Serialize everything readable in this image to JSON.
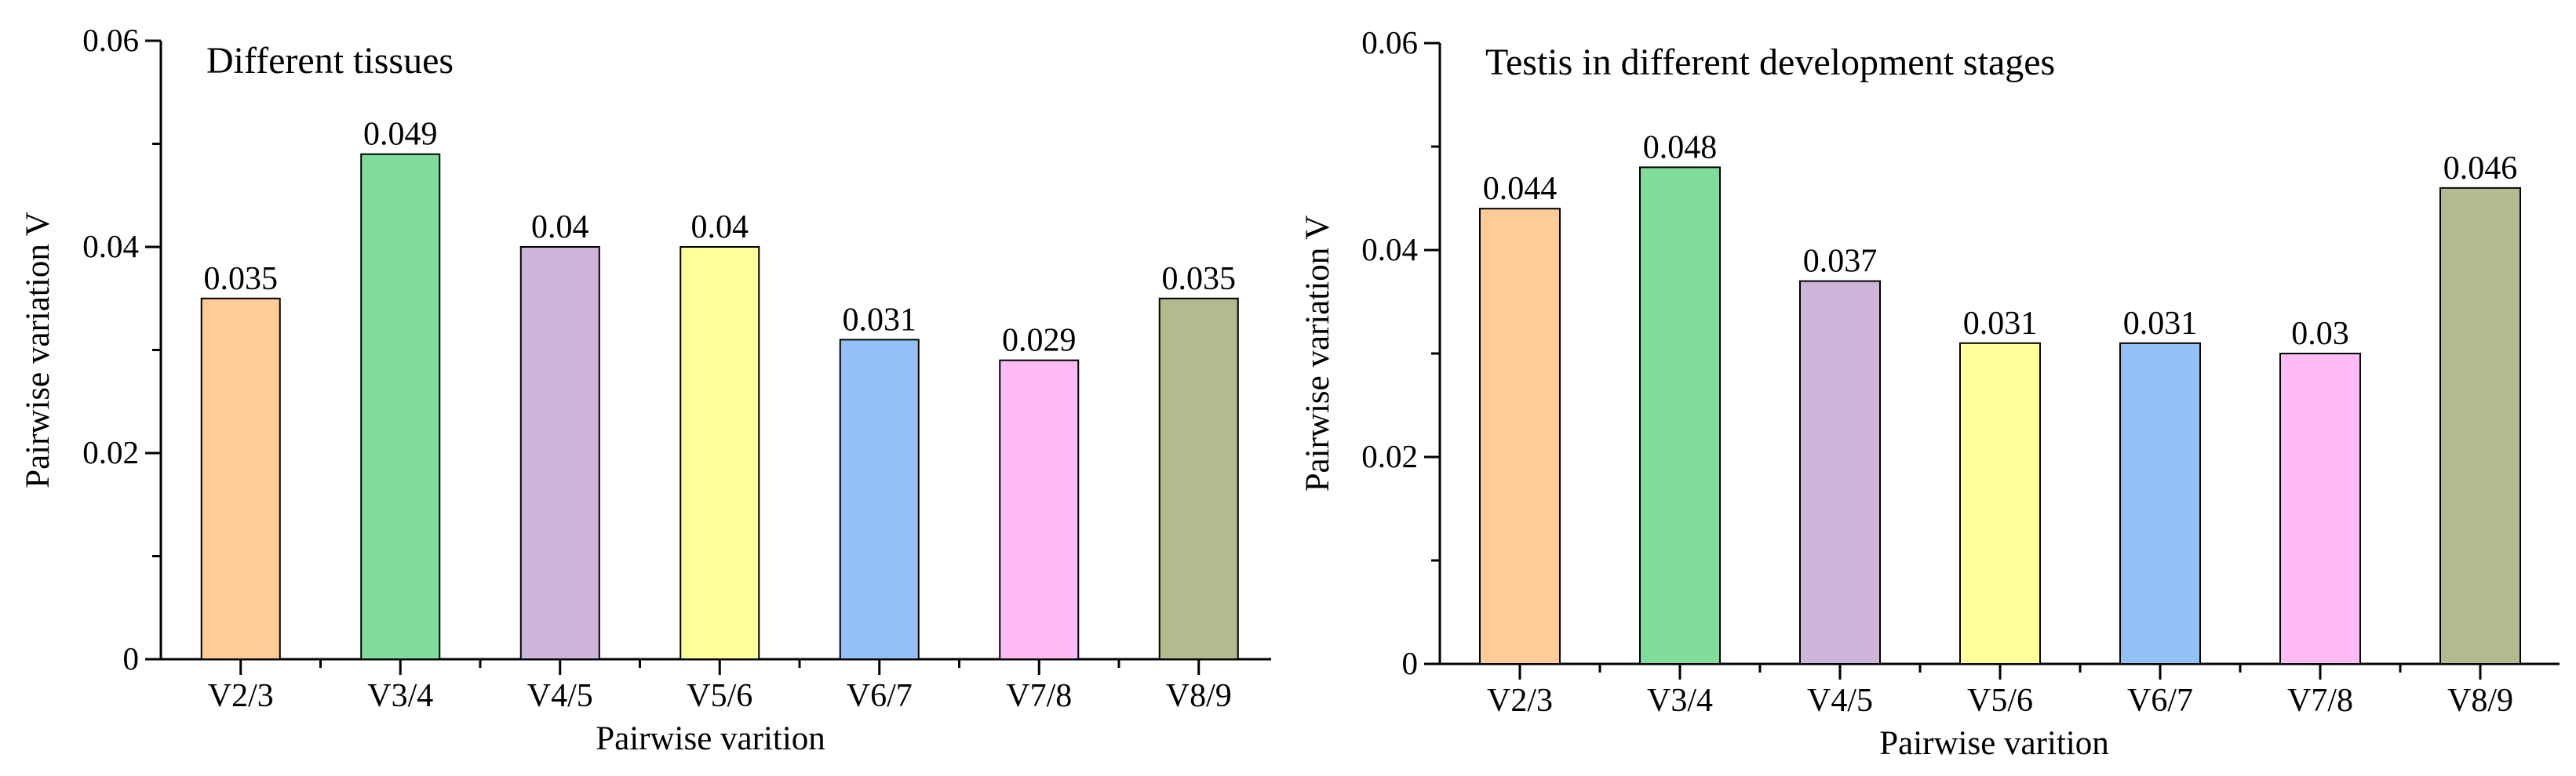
{
  "chart_data": [
    {
      "type": "bar",
      "title": "Different tissues",
      "xlabel": "Pairwise varition",
      "ylabel": "Pairwise variation V",
      "ylim": [
        0,
        0.06
      ],
      "yticks": [
        0,
        0.02,
        0.04,
        0.06
      ],
      "ytick_labels": [
        "0",
        "0.02",
        "0.04",
        "0.06"
      ],
      "grid": false,
      "categories": [
        "V2/3",
        "V3/4",
        "V4/5",
        "V5/6",
        "V6/7",
        "V7/8",
        "V8/9"
      ],
      "values": [
        0.035,
        0.049,
        0.04,
        0.04,
        0.031,
        0.029,
        0.035
      ],
      "data_labels": [
        "0.035",
        "0.049",
        "0.04",
        "0.04",
        "0.031",
        "0.029",
        "0.035"
      ],
      "colors": [
        "#FFCC99",
        "#80DD9C",
        "#CDB5DA",
        "#FFFF99",
        "#93C1F7",
        "#FFBBF6",
        "#B4B98E"
      ]
    },
    {
      "type": "bar",
      "title": "Testis in different development stages",
      "xlabel": "Pairwise varition",
      "ylabel": "Pairwise variation V",
      "ylim": [
        0,
        0.06
      ],
      "yticks": [
        0,
        0.02,
        0.04,
        0.06
      ],
      "ytick_labels": [
        "0",
        "0.02",
        "0.04",
        "0.06"
      ],
      "grid": false,
      "categories": [
        "V2/3",
        "V3/4",
        "V4/5",
        "V5/6",
        "V6/7",
        "V7/8",
        "V8/9"
      ],
      "values": [
        0.044,
        0.048,
        0.037,
        0.031,
        0.031,
        0.03,
        0.046
      ],
      "data_labels": [
        "0.044",
        "0.048",
        "0.037",
        "0.031",
        "0.031",
        "0.03",
        "0.046"
      ],
      "colors": [
        "#FFCC99",
        "#80DD9C",
        "#CDB5DA",
        "#FFFF99",
        "#93C1F7",
        "#FFBBF6",
        "#B4B98E"
      ]
    }
  ]
}
